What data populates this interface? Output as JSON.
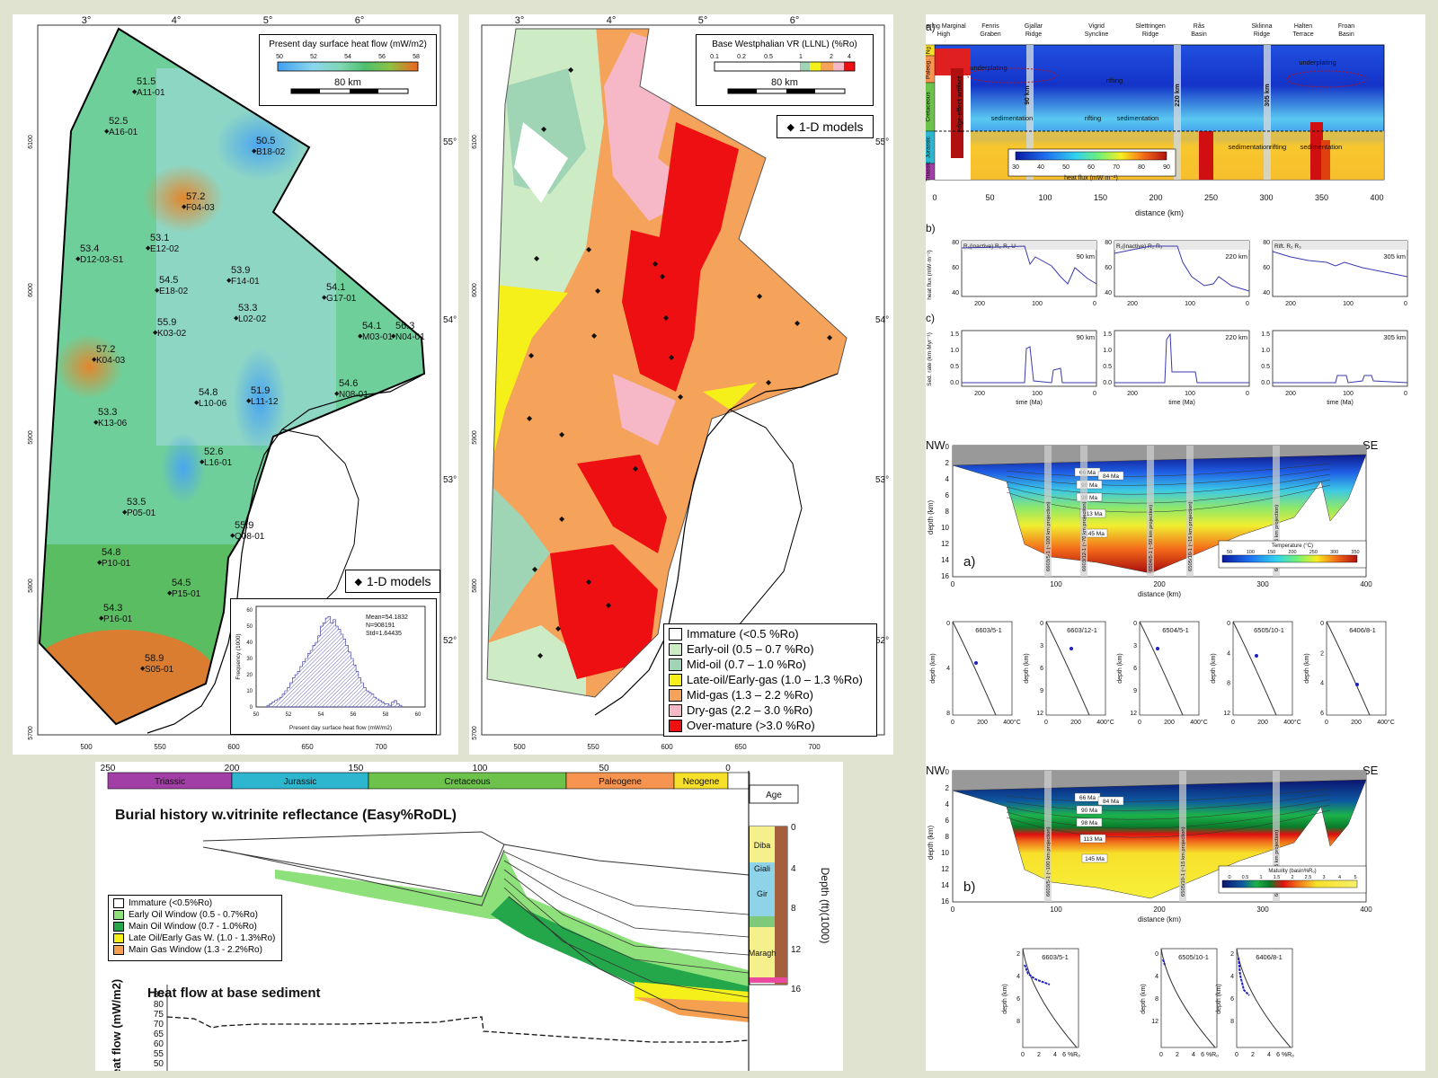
{
  "heatflow_map": {
    "title": "Present day surface heat flow (mW/m2)",
    "scale_ticks": [
      "50",
      "52",
      "54",
      "56",
      "58"
    ],
    "scale_bar": "80 km",
    "legend": "1-D models",
    "lon_ticks": [
      "3°",
      "4°",
      "5°",
      "6°"
    ],
    "lat_ticks": [
      "55°",
      "54°",
      "53°",
      "52°"
    ],
    "northing_ticks": [
      "6100",
      "6000",
      "5900",
      "5800",
      "5700"
    ],
    "easting_ticks": [
      "500",
      "550",
      "600",
      "650",
      "700"
    ],
    "wells": [
      {
        "value": "51.5",
        "name": "A11-01"
      },
      {
        "value": "52.5",
        "name": "A16-01"
      },
      {
        "value": "50.5",
        "name": "B18-02"
      },
      {
        "value": "57.2",
        "name": "F04-03"
      },
      {
        "value": "53.4",
        "name": "D12-03-S1"
      },
      {
        "value": "53.1",
        "name": "E12-02"
      },
      {
        "value": "54.5",
        "name": "E18-02"
      },
      {
        "value": "53.9",
        "name": "F14-01"
      },
      {
        "value": "54.1",
        "name": "G17-01"
      },
      {
        "value": "53.3",
        "name": "L02-02"
      },
      {
        "value": "54.1",
        "name": "M03-01"
      },
      {
        "value": "56.3",
        "name": "N04-01"
      },
      {
        "value": "55.9",
        "name": "K03-02"
      },
      {
        "value": "57.2",
        "name": "K04-03"
      },
      {
        "value": "54.6",
        "name": "N08-01"
      },
      {
        "value": "54.8",
        "name": "L10-06"
      },
      {
        "value": "51.9",
        "name": "L11-12"
      },
      {
        "value": "53.3",
        "name": "K13-06"
      },
      {
        "value": "52.6",
        "name": "L16-01"
      },
      {
        "value": "53.5",
        "name": "P05-01"
      },
      {
        "value": "55.9",
        "name": "Q08-01"
      },
      {
        "value": "54.8",
        "name": "P10-01"
      },
      {
        "value": "54.5",
        "name": "P15-01"
      },
      {
        "value": "54.3",
        "name": "P16-01"
      },
      {
        "value": "58.9",
        "name": "S05-01"
      }
    ],
    "histogram": {
      "stats": [
        "Mean=54.1832",
        "N=908191",
        "Std=1.64435"
      ],
      "xlabel": "Present day surface heat flow (mW/m2)",
      "ylabel": "Frequency (1000)",
      "xticks": [
        "50",
        "52",
        "54",
        "56",
        "58",
        "60"
      ],
      "yticks": [
        "0",
        "10",
        "20",
        "30",
        "40",
        "50",
        "60"
      ]
    }
  },
  "vr_map": {
    "title": "Base Westphalian VR (LLNL) (%Ro)",
    "scale_ticks": [
      "0.1",
      "0.2",
      "0.5",
      "1",
      "2",
      "4"
    ],
    "scale_bar": "80 km",
    "legend": "1-D models",
    "lon_ticks": [
      "3°",
      "4°",
      "5°",
      "6°"
    ],
    "lat_ticks": [
      "55°",
      "54°",
      "53°",
      "52°"
    ],
    "northing_ticks": [
      "6100",
      "6000",
      "5900",
      "5800",
      "5700"
    ],
    "easting_ticks": [
      "500",
      "550",
      "600",
      "650",
      "700"
    ],
    "classes": [
      {
        "label": "Immature (<0.5 %Ro)",
        "color": "#ffffff"
      },
      {
        "label": "Early-oil (0.5 – 0.7 %Ro)",
        "color": "#cdebc4"
      },
      {
        "label": "Mid-oil (0.7 – 1.0 %Ro)",
        "color": "#9fd4b4"
      },
      {
        "label": "Late-oil/Early-gas (1.0 – 1.3 %Ro)",
        "color": "#f5f01a"
      },
      {
        "label": "Mid-gas (1.3 – 2.2 %Ro)",
        "color": "#f5a25a"
      },
      {
        "label": "Dry-gas (2.2 – 3.0 %Ro)",
        "color": "#f6b7c6"
      },
      {
        "label": "Over-mature (>3.0 %Ro)",
        "color": "#ee0f12"
      }
    ]
  },
  "burial": {
    "title": "Burial history w.vitrinite reflectance (Easy%RoDL)",
    "periods": [
      {
        "name": "Triassic",
        "color": "#a23fa6"
      },
      {
        "name": "Jurassic",
        "color": "#2eb6cf"
      },
      {
        "name": "Cretaceous",
        "color": "#6cc24a"
      },
      {
        "name": "Paleogene",
        "color": "#f79550"
      },
      {
        "name": "Neogene",
        "color": "#f7e02a"
      }
    ],
    "age_label": "Age",
    "time_ticks": [
      "250",
      "200",
      "150",
      "100",
      "50",
      "0"
    ],
    "depth_label": "Depth (ft)(1000)",
    "depth_ticks": [
      "0",
      "4",
      "8",
      "12",
      "16"
    ],
    "formations": [
      "Diba",
      "Giali",
      "Gir",
      "Maragh"
    ],
    "legend": [
      {
        "label": "Immature (<0.5%Ro)",
        "color": "#ffffff"
      },
      {
        "label": "Early Oil Window (0.5 - 0.7%Ro)",
        "color": "#8ee07a"
      },
      {
        "label": "Main Oil Window (0.7 - 1.0%Ro)",
        "color": "#23a74a"
      },
      {
        "label": "Late Oil/Early Gas W. (1.0 - 1.3%Ro)",
        "color": "#f5ef1a"
      },
      {
        "label": "Main Gas Window (1.3 - 2.2%Ro)",
        "color": "#f5a050"
      }
    ],
    "heatflow_title": "Heat flow at base sediment",
    "heatflow_ylabel": "Heat flow (mW/m2)",
    "heatflow_ticks": [
      "85",
      "80",
      "75",
      "70",
      "65",
      "60",
      "55",
      "50"
    ]
  },
  "section_a": {
    "panel_label": "a)",
    "locations": [
      "Vøring Marginal High",
      "Fenris Graben",
      "Gjallar Ridge",
      "Vigrid Syncline",
      "Slettringen Ridge",
      "Rås Basin",
      "Sklinna Ridge",
      "Halten Terrace",
      "Froan Basin"
    ],
    "eras": [
      "Ng",
      "Paleog.",
      "Cretaceous",
      "Jurassic",
      "Triassic"
    ],
    "annotations": [
      "underplating",
      "rifting",
      "sedimentation",
      "rifting",
      "sedimentation",
      "sedimentation",
      "rifting",
      "sedimentation",
      "underplating",
      "edge-effect artifact",
      "90 km",
      "220 km",
      "305 km"
    ],
    "colorbar_label": "heat flux (mW·m⁻²)",
    "colorbar_ticks": [
      "30",
      "40",
      "50",
      "60",
      "70",
      "80",
      "90"
    ],
    "xlabel": "distance (km)",
    "xticks": [
      "0",
      "50",
      "100",
      "150",
      "200",
      "250",
      "300",
      "350",
      "400"
    ]
  },
  "panel_b": {
    "label": "b)",
    "ylabel": "heat flux (mW·m⁻²)",
    "yticks": [
      "80",
      "60",
      "40"
    ],
    "xticks": [
      "200",
      "100",
      "0"
    ],
    "plots": [
      {
        "km": "90 km",
        "phases": "R₁(inactive) R₂ R₃ U"
      },
      {
        "km": "220 km",
        "phases": "R₁(inactive) R₂ R₃"
      },
      {
        "km": "305 km",
        "phases": "Rift. R₂ R₃"
      }
    ]
  },
  "panel_c": {
    "label": "c)",
    "ylabel": "Sed. rate (km·Myr⁻¹)",
    "yticks": [
      "1.5",
      "1.0",
      "0.5",
      "0.0"
    ],
    "xticks": [
      "200",
      "100",
      "0"
    ],
    "xlabel": "time (Ma)",
    "plots": [
      "90 km",
      "220 km",
      "305 km"
    ]
  },
  "temp_section": {
    "nw": "NW",
    "se": "SE",
    "label": "a)",
    "ages": [
      "66 Ma",
      "84 Ma",
      "90 Ma",
      "98 Ma",
      "113 Ma",
      "145 Ma"
    ],
    "wells": [
      "6603/5-1 (~100 km projection)",
      "6603/12-1 (~70 km projection)",
      "6504/5-1 (~50 km projection)",
      "6505/10-1 (~15 km projection)",
      "6406/8-1 (~15 km projection)"
    ],
    "colorbar_label": "Temperature (°C)",
    "colorbar_ticks": [
      "50",
      "100",
      "150",
      "200",
      "250",
      "300",
      "350"
    ],
    "ylabel": "depth (km)",
    "yticks": [
      "0",
      "2",
      "4",
      "6",
      "8",
      "10",
      "12",
      "14",
      "16"
    ],
    "xlabel": "distance (km)",
    "xticks": [
      "0",
      "100",
      "200",
      "300",
      "400"
    ]
  },
  "temp_profiles": [
    {
      "name": "6603/5-1",
      "yticks": [
        "0",
        "4",
        "8"
      ]
    },
    {
      "name": "6603/12-1",
      "yticks": [
        "0",
        "3",
        "6",
        "9",
        "12"
      ]
    },
    {
      "name": "6504/5-1",
      "yticks": [
        "0",
        "3",
        "6",
        "9",
        "12"
      ]
    },
    {
      "name": "6505/10-1",
      "yticks": [
        "0",
        "4",
        "8",
        "12"
      ]
    },
    {
      "name": "6406/8-1",
      "yticks": [
        "0",
        "2",
        "4",
        "6"
      ]
    }
  ],
  "temp_profile_xticks": [
    "0",
    "200",
    "400°C"
  ],
  "temp_profile_ylabel": "depth (km)",
  "maturity_section": {
    "nw": "NW",
    "se": "SE",
    "label": "b)",
    "ages": [
      "66 Ma",
      "84 Ma",
      "90 Ma",
      "98 Ma",
      "113 Ma",
      "145 Ma"
    ],
    "wells": [
      "6603/5-1 (~100 km projection)",
      "6505/10-1 (~15 km projection)",
      "6406/8-1 (~15 km projection)"
    ],
    "colorbar_label": "Maturity (basin%Rₒ)",
    "colorbar_ticks": [
      "0",
      "0.5",
      "1",
      "1.5",
      "2",
      "2.5",
      "3",
      "4",
      "5"
    ],
    "ylabel": "depth (km)",
    "yticks": [
      "0",
      "2",
      "4",
      "6",
      "8",
      "10",
      "12",
      "14",
      "16"
    ],
    "xlabel": "distance (km)",
    "xticks": [
      "0",
      "100",
      "200",
      "300",
      "400"
    ]
  },
  "ro_profiles": [
    {
      "name": "6603/5-1",
      "yticks": [
        "2",
        "4",
        "6",
        "8"
      ]
    },
    {
      "name": "6505/10-1",
      "yticks": [
        "0",
        "4",
        "8",
        "12"
      ]
    },
    {
      "name": "6406/8-1",
      "yticks": [
        "2",
        "4",
        "6",
        "8"
      ]
    }
  ],
  "ro_profile_xticks": [
    "0",
    "2",
    "4",
    "6 %Rₒ"
  ],
  "ro_profile_ylabel": "depth (km)"
}
